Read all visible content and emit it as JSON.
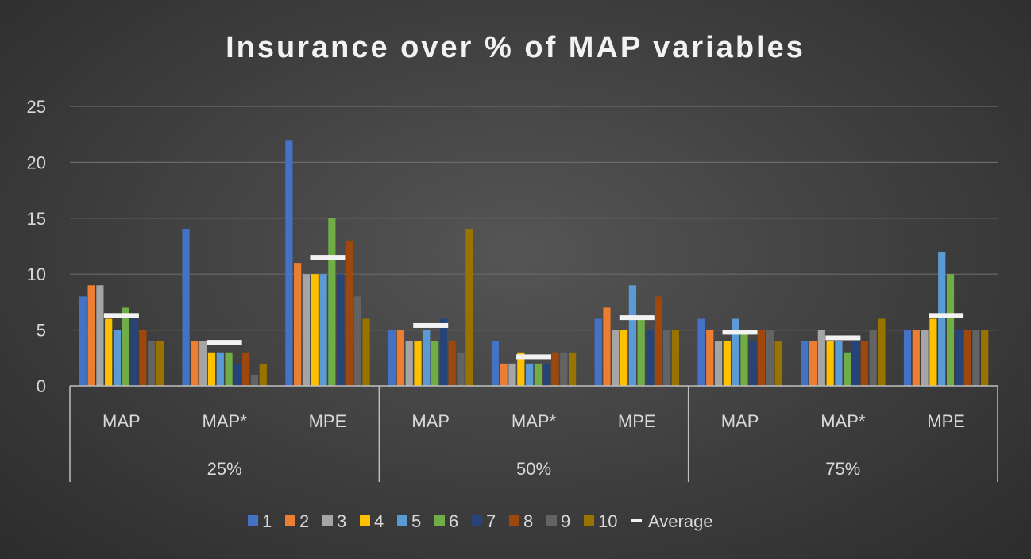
{
  "chart_data": {
    "type": "bar",
    "title": "Insurance over % of MAP  variables",
    "xlabel": "",
    "ylabel": "",
    "ylim": [
      0,
      25
    ],
    "yticks": [
      0,
      5,
      10,
      15,
      20,
      25
    ],
    "grid": true,
    "legend_position": "bottom",
    "groups": [
      {
        "label": "25%",
        "categories": [
          "MAP",
          "MAP*",
          "MPE"
        ]
      },
      {
        "label": "50%",
        "categories": [
          "MAP",
          "MAP*",
          "MPE"
        ]
      },
      {
        "label": "75%",
        "categories": [
          "MAP",
          "MAP*",
          "MPE"
        ]
      }
    ],
    "categories": [
      "MAP",
      "MAP*",
      "MPE",
      "MAP",
      "MAP*",
      "MPE",
      "MAP",
      "MAP*",
      "MPE"
    ],
    "series": [
      {
        "name": "1",
        "color": "#4472c4",
        "values": [
          8,
          14,
          22,
          5,
          4,
          6,
          6,
          4,
          5
        ]
      },
      {
        "name": "2",
        "color": "#ed7d31",
        "values": [
          9,
          4,
          11,
          5,
          2,
          7,
          5,
          4,
          5
        ]
      },
      {
        "name": "3",
        "color": "#a5a5a5",
        "values": [
          9,
          4,
          10,
          4,
          2,
          5,
          4,
          5,
          5
        ]
      },
      {
        "name": "4",
        "color": "#ffc000",
        "values": [
          6,
          3,
          10,
          4,
          3,
          5,
          4,
          4,
          6
        ]
      },
      {
        "name": "5",
        "color": "#5b9bd5",
        "values": [
          5,
          3,
          10,
          5,
          2,
          9,
          6,
          4,
          12
        ]
      },
      {
        "name": "6",
        "color": "#70ad47",
        "values": [
          7,
          3,
          15,
          4,
          2,
          6,
          5,
          3,
          10
        ]
      },
      {
        "name": "7",
        "color": "#264478",
        "values": [
          6,
          2,
          10,
          6,
          2,
          5,
          4,
          4,
          5
        ]
      },
      {
        "name": "8",
        "color": "#9e480e",
        "values": [
          5,
          3,
          13,
          4,
          3,
          8,
          5,
          4,
          5
        ]
      },
      {
        "name": "9",
        "color": "#636363",
        "values": [
          4,
          1,
          8,
          3,
          3,
          5,
          5,
          5,
          5
        ]
      },
      {
        "name": "10",
        "color": "#997300",
        "values": [
          4,
          2,
          6,
          14,
          3,
          5,
          4,
          6,
          5
        ]
      }
    ],
    "average": {
      "name": "Average",
      "color": "#f2f2f2",
      "values": [
        6.3,
        3.9,
        11.5,
        5.4,
        2.6,
        6.1,
        4.8,
        4.3,
        6.3
      ]
    }
  }
}
